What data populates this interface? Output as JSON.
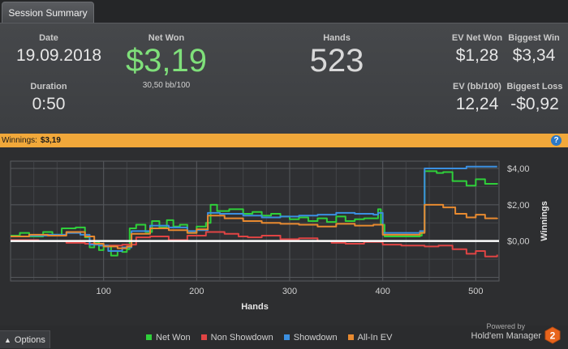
{
  "tab": {
    "label": "Session Summary"
  },
  "summary": {
    "date_label": "Date",
    "date": "19.09.2018",
    "duration_label": "Duration",
    "duration": "0:50",
    "net_won_label": "Net Won",
    "net_won": "$3,19",
    "bb100": "30,50 bb/100",
    "hands_label": "Hands",
    "hands": "523",
    "ev_net_won_label": "EV Net Won",
    "ev_net_won": "$1,28",
    "biggest_win_label": "Biggest Win",
    "biggest_win": "$3,34",
    "ev_bb100_label": "EV (bb/100)",
    "ev_bb100": "12,24",
    "biggest_loss_label": "Biggest Loss",
    "biggest_loss": "-$0,92"
  },
  "winnings_bar": {
    "label": "Winnings:",
    "amount": "$3,19",
    "help": "?"
  },
  "chart_data": {
    "type": "line",
    "xlabel": "Hands",
    "ylabel": "Winnings",
    "xlim": [
      0,
      525
    ],
    "ylim": [
      -2.2,
      4.4
    ],
    "x_ticks": [
      "100",
      "200",
      "300",
      "400",
      "500"
    ],
    "y_ticks": [
      "$4,00",
      "$2,00",
      "$0,00"
    ],
    "grid": true,
    "series": [
      {
        "name": "Net Won",
        "color": "#2fcf3a",
        "points": [
          [
            0,
            0.3
          ],
          [
            10,
            0.45
          ],
          [
            20,
            0.25
          ],
          [
            35,
            0.5
          ],
          [
            45,
            0.35
          ],
          [
            55,
            0.7
          ],
          [
            70,
            0.75
          ],
          [
            80,
            0.2
          ],
          [
            85,
            -0.35
          ],
          [
            90,
            -0.05
          ],
          [
            95,
            -0.5
          ],
          [
            100,
            -0.3
          ],
          [
            108,
            -0.8
          ],
          [
            115,
            -0.55
          ],
          [
            120,
            -0.6
          ],
          [
            125,
            -0.45
          ],
          [
            128,
            0.7
          ],
          [
            135,
            0.9
          ],
          [
            145,
            0.5
          ],
          [
            152,
            1.1
          ],
          [
            160,
            0.75
          ],
          [
            168,
            1.15
          ],
          [
            175,
            0.8
          ],
          [
            182,
            0.9
          ],
          [
            190,
            0.45
          ],
          [
            200,
            0.8
          ],
          [
            210,
            1.0
          ],
          [
            215,
            2.0
          ],
          [
            222,
            1.65
          ],
          [
            235,
            1.75
          ],
          [
            250,
            1.5
          ],
          [
            260,
            1.6
          ],
          [
            270,
            1.4
          ],
          [
            280,
            1.5
          ],
          [
            290,
            1.35
          ],
          [
            300,
            1.2
          ],
          [
            310,
            1.3
          ],
          [
            320,
            1.1
          ],
          [
            330,
            1.25
          ],
          [
            340,
            1.05
          ],
          [
            350,
            1.35
          ],
          [
            360,
            1.1
          ],
          [
            370,
            1.2
          ],
          [
            380,
            1.25
          ],
          [
            390,
            1.25
          ],
          [
            395,
            1.75
          ],
          [
            398,
            0.9
          ],
          [
            402,
            0.25
          ],
          [
            420,
            0.25
          ],
          [
            440,
            0.3
          ],
          [
            442,
            0.5
          ],
          [
            445,
            3.85
          ],
          [
            458,
            3.75
          ],
          [
            465,
            3.8
          ],
          [
            475,
            3.3
          ],
          [
            490,
            3.05
          ],
          [
            500,
            3.4
          ],
          [
            510,
            3.15
          ],
          [
            523,
            3.19
          ]
        ]
      },
      {
        "name": "Non Showdown",
        "color": "#e04444",
        "points": [
          [
            0,
            0.05
          ],
          [
            30,
            0.0
          ],
          [
            60,
            -0.1
          ],
          [
            80,
            -0.15
          ],
          [
            100,
            -0.25
          ],
          [
            120,
            -0.2
          ],
          [
            135,
            0.2
          ],
          [
            150,
            0.25
          ],
          [
            170,
            0.05
          ],
          [
            190,
            0.3
          ],
          [
            210,
            0.5
          ],
          [
            230,
            0.4
          ],
          [
            245,
            0.25
          ],
          [
            255,
            0.2
          ],
          [
            270,
            0.3
          ],
          [
            290,
            0.1
          ],
          [
            310,
            0.15
          ],
          [
            330,
            0.0
          ],
          [
            345,
            -0.1
          ],
          [
            360,
            -0.15
          ],
          [
            380,
            -0.05
          ],
          [
            400,
            -0.2
          ],
          [
            420,
            -0.25
          ],
          [
            445,
            -0.3
          ],
          [
            460,
            -0.25
          ],
          [
            475,
            -0.45
          ],
          [
            490,
            -0.7
          ],
          [
            500,
            -0.55
          ],
          [
            510,
            -0.85
          ],
          [
            523,
            -0.75
          ]
        ]
      },
      {
        "name": "Showdown",
        "color": "#3b8fe0",
        "points": [
          [
            0,
            0.25
          ],
          [
            20,
            0.3
          ],
          [
            40,
            0.35
          ],
          [
            60,
            0.45
          ],
          [
            75,
            0.35
          ],
          [
            85,
            -0.2
          ],
          [
            95,
            -0.25
          ],
          [
            105,
            -0.55
          ],
          [
            120,
            -0.35
          ],
          [
            130,
            0.55
          ],
          [
            150,
            0.85
          ],
          [
            170,
            0.75
          ],
          [
            190,
            0.55
          ],
          [
            200,
            0.6
          ],
          [
            212,
            1.55
          ],
          [
            225,
            1.5
          ],
          [
            250,
            1.4
          ],
          [
            270,
            1.3
          ],
          [
            290,
            1.35
          ],
          [
            310,
            1.4
          ],
          [
            330,
            1.45
          ],
          [
            350,
            1.55
          ],
          [
            370,
            1.5
          ],
          [
            390,
            1.45
          ],
          [
            395,
            1.55
          ],
          [
            400,
            0.45
          ],
          [
            420,
            0.45
          ],
          [
            440,
            0.55
          ],
          [
            445,
            4.0
          ],
          [
            480,
            4.0
          ],
          [
            490,
            4.1
          ],
          [
            510,
            4.1
          ],
          [
            523,
            4.1
          ]
        ]
      },
      {
        "name": "All-In EV",
        "color": "#e88a30",
        "points": [
          [
            0,
            0.25
          ],
          [
            20,
            0.35
          ],
          [
            40,
            0.3
          ],
          [
            60,
            0.5
          ],
          [
            80,
            0.25
          ],
          [
            90,
            -0.15
          ],
          [
            100,
            -0.3
          ],
          [
            115,
            -0.4
          ],
          [
            125,
            -0.3
          ],
          [
            130,
            0.4
          ],
          [
            150,
            0.7
          ],
          [
            170,
            0.6
          ],
          [
            190,
            0.45
          ],
          [
            200,
            0.65
          ],
          [
            212,
            1.4
          ],
          [
            230,
            1.25
          ],
          [
            250,
            1.1
          ],
          [
            270,
            1.0
          ],
          [
            290,
            0.95
          ],
          [
            310,
            0.9
          ],
          [
            330,
            0.8
          ],
          [
            350,
            0.95
          ],
          [
            370,
            0.85
          ],
          [
            390,
            0.9
          ],
          [
            400,
            0.35
          ],
          [
            420,
            0.35
          ],
          [
            440,
            0.45
          ],
          [
            445,
            2.0
          ],
          [
            465,
            1.85
          ],
          [
            478,
            1.5
          ],
          [
            490,
            1.3
          ],
          [
            500,
            1.45
          ],
          [
            510,
            1.25
          ],
          [
            523,
            1.28
          ]
        ]
      }
    ]
  },
  "legend": {
    "items": [
      {
        "label": "Net Won",
        "color": "#2fcf3a"
      },
      {
        "label": "Non Showdown",
        "color": "#e04444"
      },
      {
        "label": "Showdown",
        "color": "#3b8fe0"
      },
      {
        "label": "All-In EV",
        "color": "#e88a30"
      }
    ]
  },
  "options": {
    "label": "Options",
    "icon": "chevron-up-icon"
  },
  "branding": {
    "powered": "Powered by",
    "name": "Hold'em Manager",
    "logo_number": "2"
  }
}
